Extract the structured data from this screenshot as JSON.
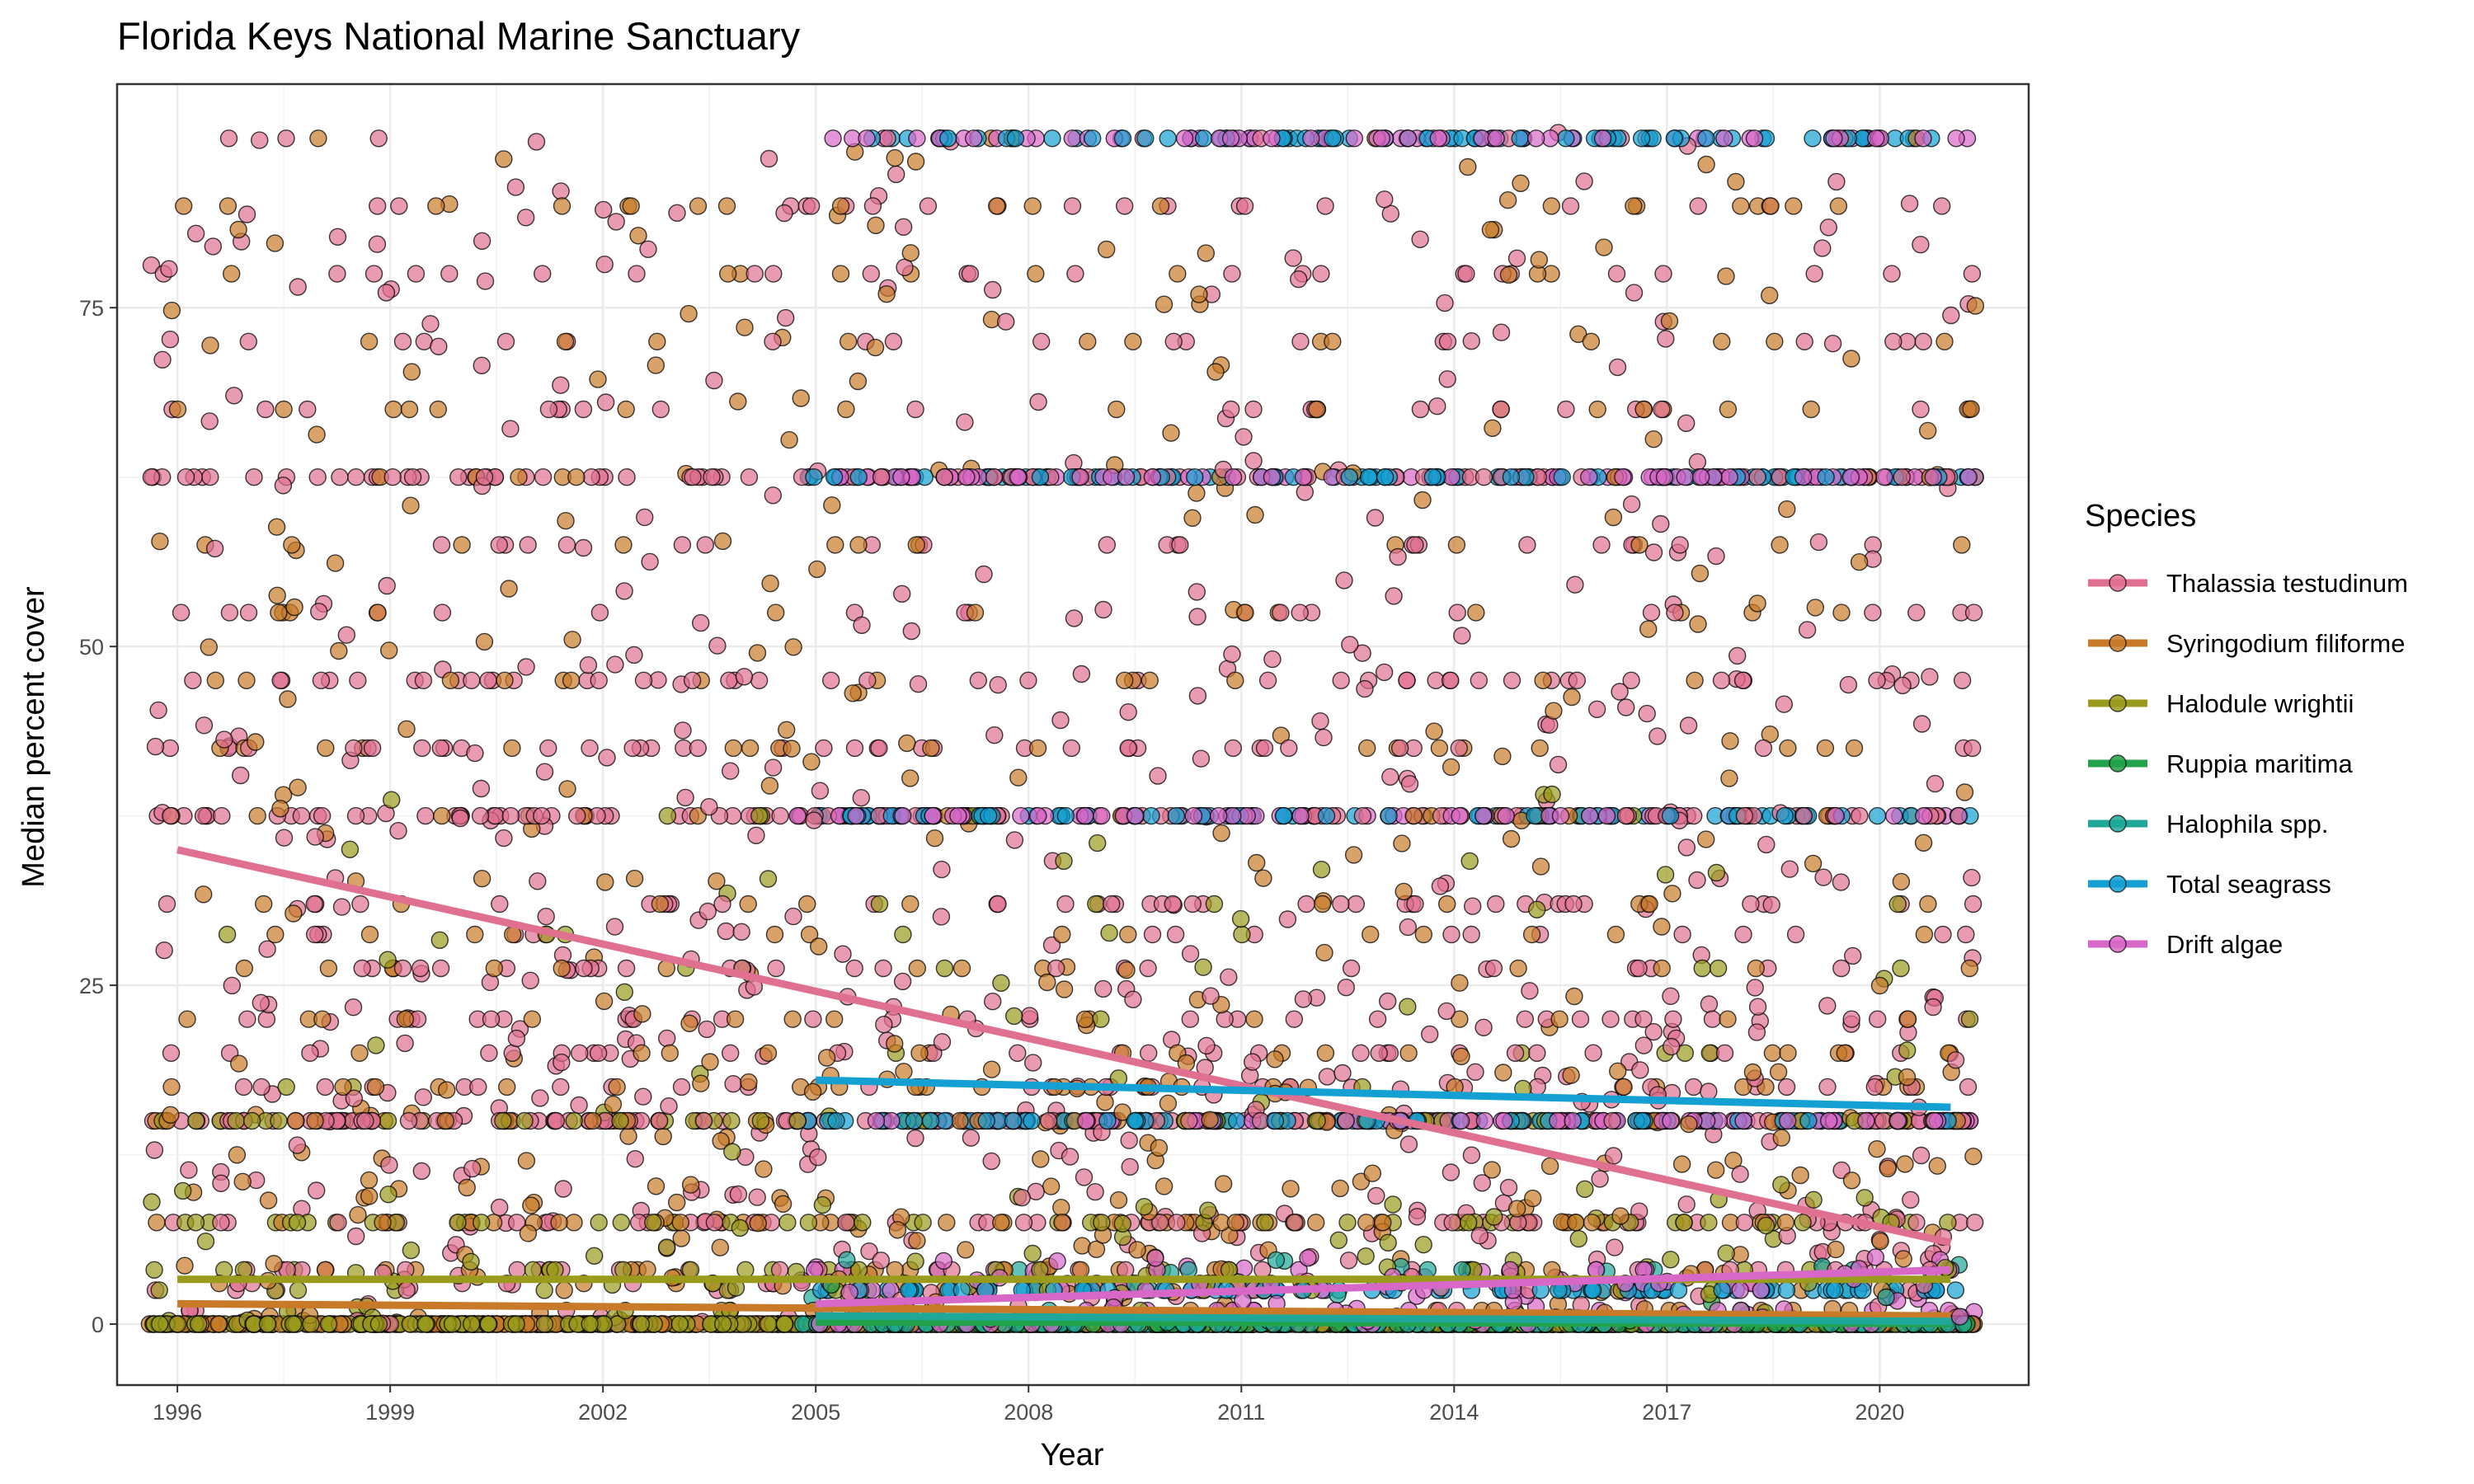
{
  "chart_data": {
    "type": "scatter",
    "title": "Florida Keys National Marine Sanctuary",
    "xlabel": "Year",
    "ylabel": "Median percent cover",
    "xlim": [
      1995.15,
      2022.1
    ],
    "ylim": [
      -4.5,
      91.5
    ],
    "x_ticks": [
      1996,
      1999,
      2002,
      2005,
      2008,
      2011,
      2014,
      2017,
      2020
    ],
    "y_ticks": [
      0,
      25,
      50,
      75
    ],
    "grid": true,
    "legend": {
      "title": "Species",
      "position": "right"
    },
    "point_style": {
      "filled": true,
      "opacity": 0.7,
      "outline": "#000000"
    },
    "common_levels": [
      0,
      0.25,
      0.5,
      1,
      2.5,
      3,
      4,
      7.5,
      15,
      17.5,
      20,
      22.5,
      26.25,
      28.75,
      31,
      37.5,
      42.5,
      47.5,
      52.5,
      57.5,
      62.5,
      67.5,
      72.5,
      77.5,
      82.5,
      87.5
    ],
    "series": [
      {
        "name": "Thalassia testudinum",
        "color": "#E07090",
        "x_range": [
          1995.6,
          2021.35
        ],
        "bands": [
          [
            0,
            25,
            0.38
          ],
          [
            25,
            50,
            0.22
          ],
          [
            50,
            75,
            0.12
          ],
          [
            75,
            88,
            0.06
          ],
          [
            0,
            0,
            0.05
          ],
          [
            15,
            15,
            0.07
          ],
          [
            37.5,
            37.5,
            0.05
          ],
          [
            62.5,
            62.5,
            0.05
          ]
        ],
        "trend": [
          [
            1996,
            35
          ],
          [
            2021,
            6
          ]
        ]
      },
      {
        "name": "Syringodium filiforme",
        "color": "#C87A28",
        "x_range": [
          1995.6,
          2021.35
        ],
        "bands": [
          [
            0,
            0,
            0.3
          ],
          [
            0,
            20,
            0.35
          ],
          [
            20,
            50,
            0.18
          ],
          [
            50,
            88,
            0.17
          ]
        ],
        "trend": [
          [
            1996,
            1.5
          ],
          [
            2021,
            0.6
          ]
        ]
      },
      {
        "name": "Halodule wrightii",
        "color": "#9A9A1C",
        "x_range": [
          1995.6,
          2021.35
        ],
        "bands": [
          [
            0,
            0,
            0.6
          ],
          [
            0,
            10,
            0.22
          ],
          [
            10,
            40,
            0.1
          ],
          [
            15,
            15,
            0.08
          ]
        ],
        "trend": [
          [
            1996,
            3.3
          ],
          [
            2021,
            3.3
          ]
        ]
      },
      {
        "name": "Ruppia maritima",
        "color": "#22A24A",
        "x_range": [
          2004.7,
          2021.35
        ],
        "bands": [
          [
            0,
            0,
            0.95
          ],
          [
            0,
            3,
            0.05
          ]
        ],
        "trend": [
          [
            2005,
            0.15
          ],
          [
            2021,
            0.05
          ]
        ]
      },
      {
        "name": "Halophila spp.",
        "color": "#1FA899",
        "x_range": [
          2004.7,
          2021.35
        ],
        "bands": [
          [
            0,
            0,
            0.85
          ],
          [
            0,
            5,
            0.15
          ]
        ],
        "trend": [
          [
            2005,
            0.6
          ],
          [
            2021,
            0.2
          ]
        ]
      },
      {
        "name": "Total seagrass",
        "color": "#14A0D2",
        "x_range": [
          2004.7,
          2021.35
        ],
        "bands": [
          [
            87.5,
            87.5,
            0.2
          ],
          [
            62.5,
            62.5,
            0.2
          ],
          [
            37.5,
            37.5,
            0.2
          ],
          [
            15,
            15,
            0.2
          ],
          [
            2.5,
            2.5,
            0.2
          ]
        ],
        "trend": [
          [
            2005,
            18
          ],
          [
            2021,
            16
          ]
        ]
      },
      {
        "name": "Drift algae",
        "color": "#D868C8",
        "x_range": [
          2004.7,
          2021.35
        ],
        "bands": [
          [
            0,
            5,
            0.3
          ],
          [
            87.5,
            87.5,
            0.14
          ],
          [
            62.5,
            62.5,
            0.14
          ],
          [
            37.5,
            37.5,
            0.14
          ],
          [
            15,
            15,
            0.14
          ],
          [
            0,
            0,
            0.14
          ]
        ],
        "trend": [
          [
            2005,
            1.5
          ],
          [
            2021,
            4
          ]
        ]
      }
    ]
  }
}
